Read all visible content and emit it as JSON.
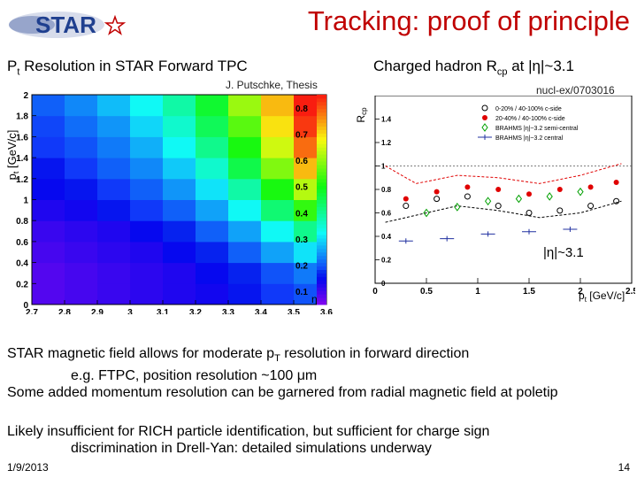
{
  "logo": {
    "text": "STAR"
  },
  "slide": {
    "title": "Tracking: proof of principle"
  },
  "left_panel": {
    "title": "Pt Resolution in STAR Forward TPC",
    "credit": "J. Putschke, Thesis"
  },
  "right_panel": {
    "title": "Charged hadron Rcp at |η|~3.1",
    "credit": "nucl-ex/0703016"
  },
  "body": {
    "p1_lines": [
      "STAR magnetic field allows for moderate pT resolution in forward direction",
      "e.g. FTPC, position resolution ~100 μm",
      "Some added momentum resolution can be garnered from radial magnetic field at poletip"
    ],
    "p2_lines": [
      "Likely insufficient for RICH particle identification, but sufficient for charge sign",
      "discrimination in Drell-Yan: detailed simulations underway"
    ]
  },
  "footer": {
    "date": "1/9/2013",
    "page": "14"
  },
  "colors": {
    "title_red": "#c00000",
    "accent_blue": "#1f3f8f"
  },
  "chart_data": [
    {
      "type": "heatmap",
      "title": "Pt Resolution in STAR Forward TPC",
      "xlabel": "η",
      "ylabel": "pt [GeV/c]",
      "x_ticks": [
        "2.7",
        "2.8",
        "2.9",
        "3",
        "3.1",
        "3.2",
        "3.3",
        "3.4",
        "3.5",
        "3.6"
      ],
      "y_ticks": [
        "0",
        "0.2",
        "0.4",
        "0.6",
        "0.8",
        "1",
        "1.2",
        "1.4",
        "1.6",
        "1.8",
        "2"
      ],
      "z_ticks": [
        "0.1",
        "0.2",
        "0.3",
        "0.4",
        "0.5",
        "0.6",
        "0.7",
        "0.8"
      ],
      "xlim": [
        2.7,
        3.6
      ],
      "ylim": [
        0,
        2
      ],
      "zlim": [
        0.05,
        0.85
      ],
      "x_edges": [
        2.7,
        2.8,
        2.9,
        3.0,
        3.1,
        3.2,
        3.3,
        3.4,
        3.5,
        3.6
      ],
      "y_edges": [
        0,
        0.2,
        0.4,
        0.6,
        0.8,
        1.0,
        1.2,
        1.4,
        1.6,
        1.8,
        2.0
      ],
      "z": [
        [
          0.08,
          0.09,
          0.1,
          0.11,
          0.12,
          0.13,
          0.15,
          0.17,
          0.19
        ],
        [
          0.08,
          0.09,
          0.1,
          0.11,
          0.12,
          0.14,
          0.16,
          0.19,
          0.22
        ],
        [
          0.09,
          0.1,
          0.11,
          0.12,
          0.14,
          0.16,
          0.2,
          0.25,
          0.3
        ],
        [
          0.1,
          0.11,
          0.12,
          0.14,
          0.16,
          0.2,
          0.25,
          0.32,
          0.4
        ],
        [
          0.12,
          0.13,
          0.15,
          0.17,
          0.2,
          0.25,
          0.32,
          0.42,
          0.52
        ],
        [
          0.14,
          0.15,
          0.17,
          0.2,
          0.24,
          0.3,
          0.38,
          0.5,
          0.62
        ],
        [
          0.15,
          0.17,
          0.2,
          0.23,
          0.28,
          0.35,
          0.45,
          0.58,
          0.72
        ],
        [
          0.17,
          0.19,
          0.22,
          0.26,
          0.32,
          0.4,
          0.5,
          0.64,
          0.78
        ],
        [
          0.18,
          0.21,
          0.24,
          0.29,
          0.35,
          0.44,
          0.55,
          0.69,
          0.82
        ],
        [
          0.2,
          0.23,
          0.27,
          0.32,
          0.38,
          0.47,
          0.6,
          0.72,
          0.84
        ]
      ]
    },
    {
      "type": "scatter",
      "title": "Charged hadron Rcp at |η|~3.1",
      "xlabel": "pt [GeV/c]",
      "ylabel": "Rcp",
      "xlim": [
        0,
        2.5
      ],
      "ylim": [
        0,
        1.6
      ],
      "x_ticks": [
        "0",
        "0.5",
        "1",
        "1.5",
        "2",
        "2.5"
      ],
      "y_ticks": [
        "0",
        "0.2",
        "0.4",
        "0.6",
        "0.8",
        "1",
        "1.2",
        "1.4"
      ],
      "annotation": "|η|~3.1",
      "series": [
        {
          "name": "0-20% / 40-100% c-side",
          "marker": "open-circle",
          "color": "#000000",
          "x": [
            0.3,
            0.6,
            0.9,
            1.2,
            1.5,
            1.8,
            2.1,
            2.35
          ],
          "y": [
            0.66,
            0.72,
            0.74,
            0.66,
            0.6,
            0.62,
            0.66,
            0.7
          ]
        },
        {
          "name": "20-40% / 40-100% c-side",
          "marker": "filled-circle",
          "color": "#e00000",
          "x": [
            0.3,
            0.6,
            0.9,
            1.2,
            1.5,
            1.8,
            2.1,
            2.35
          ],
          "y": [
            0.72,
            0.78,
            0.82,
            0.8,
            0.76,
            0.8,
            0.82,
            0.86
          ]
        },
        {
          "name": "BRAHMS |η|~3.2 semi-central",
          "marker": "open-diamond",
          "color": "#00a000",
          "x": [
            0.5,
            0.8,
            1.1,
            1.4,
            1.7,
            2.0
          ],
          "y": [
            0.6,
            0.65,
            0.7,
            0.72,
            0.74,
            0.78
          ]
        },
        {
          "name": "BRAHMS |η|~3.2 central",
          "marker": "open-cross",
          "color": "#2030a0",
          "x": [
            0.3,
            0.7,
            1.1,
            1.5,
            1.9
          ],
          "y": [
            0.36,
            0.38,
            0.42,
            0.44,
            0.46
          ]
        }
      ],
      "bands": [
        {
          "name": "upper systematic band",
          "color": "#e00000",
          "x": [
            0.1,
            0.4,
            0.8,
            1.2,
            1.6,
            2.0,
            2.4
          ],
          "y": [
            1.0,
            0.85,
            0.92,
            0.9,
            0.85,
            0.92,
            1.02
          ]
        },
        {
          "name": "lower systematic band",
          "color": "#000000",
          "x": [
            0.1,
            0.4,
            0.8,
            1.2,
            1.6,
            2.0,
            2.4
          ],
          "y": [
            0.52,
            0.58,
            0.66,
            0.62,
            0.56,
            0.6,
            0.7
          ]
        }
      ]
    }
  ]
}
